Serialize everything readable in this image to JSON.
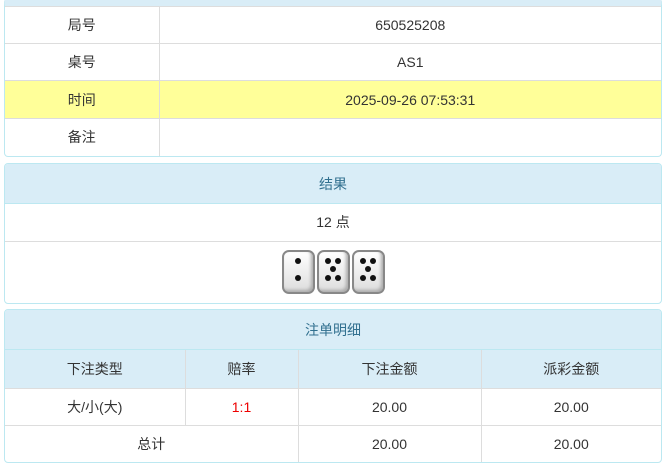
{
  "info": {
    "rows": [
      {
        "label": "局号",
        "value": "650525208"
      },
      {
        "label": "桌号",
        "value": "AS1"
      },
      {
        "label": "时间",
        "value": "2025-09-26 07:53:31"
      },
      {
        "label": "备注",
        "value": ""
      }
    ]
  },
  "result": {
    "title": "结果",
    "points": "12 点",
    "dice": [
      2,
      5,
      5
    ],
    "die_icon": "dice-icon"
  },
  "bets": {
    "title": "注单明细",
    "headers": [
      "下注类型",
      "赔率",
      "下注金额",
      "派彩金额"
    ],
    "rows": [
      {
        "type": "大/小(大)",
        "odds": "1:1",
        "amount": "20.00",
        "payout": "20.00"
      }
    ],
    "total": {
      "label": "总计",
      "amount": "20.00",
      "payout": "20.00"
    },
    "odds_color": "#ee0000",
    "highlight_color": "#ffff99"
  }
}
